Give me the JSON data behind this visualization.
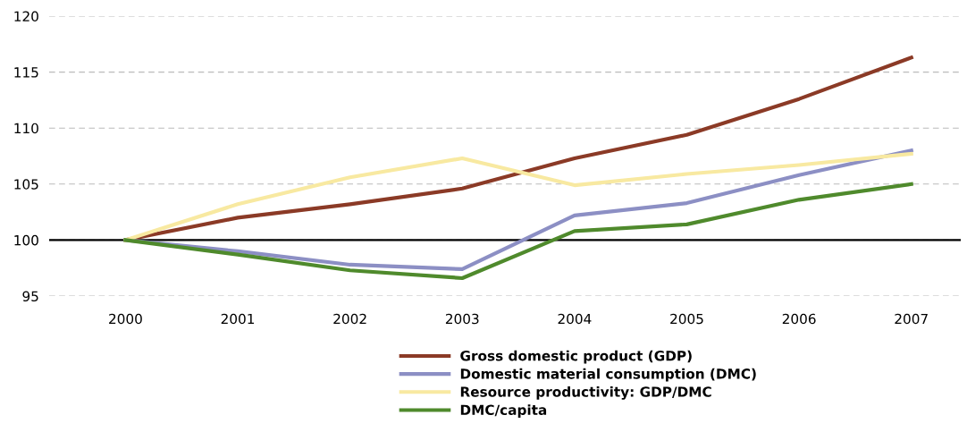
{
  "chart_data": {
    "type": "line",
    "categories": [
      "2000",
      "2001",
      "2002",
      "2003",
      "2004",
      "2005",
      "2006",
      "2007"
    ],
    "series": [
      {
        "name": "Gross domestic product (GDP)",
        "color": "#8b3a26",
        "values": [
          100,
          102.0,
          103.2,
          104.6,
          107.3,
          109.4,
          112.6,
          116.3
        ]
      },
      {
        "name": "Domestic material consumption (DMC)",
        "color": "#8c8fc4",
        "values": [
          100,
          99.0,
          97.8,
          97.4,
          102.2,
          103.3,
          105.8,
          108.0
        ]
      },
      {
        "name": "Resource productivity: GDP/DMC",
        "color": "#f8e9a1",
        "values": [
          100,
          103.2,
          105.6,
          107.3,
          104.9,
          105.9,
          106.7,
          107.7
        ]
      },
      {
        "name": "DMC/capita",
        "color": "#4f8a2c",
        "values": [
          100,
          98.7,
          97.3,
          96.6,
          100.8,
          101.4,
          103.6,
          105.0
        ]
      }
    ],
    "ylim": [
      95,
      120
    ],
    "yticks": [
      95,
      100,
      105,
      110,
      115,
      120
    ],
    "grid": "y",
    "legend": "bottom",
    "line_style": "solid",
    "marker": "none",
    "ref_lines": [
      {
        "axis": "y",
        "value": 100,
        "color": "#000000"
      }
    ]
  }
}
